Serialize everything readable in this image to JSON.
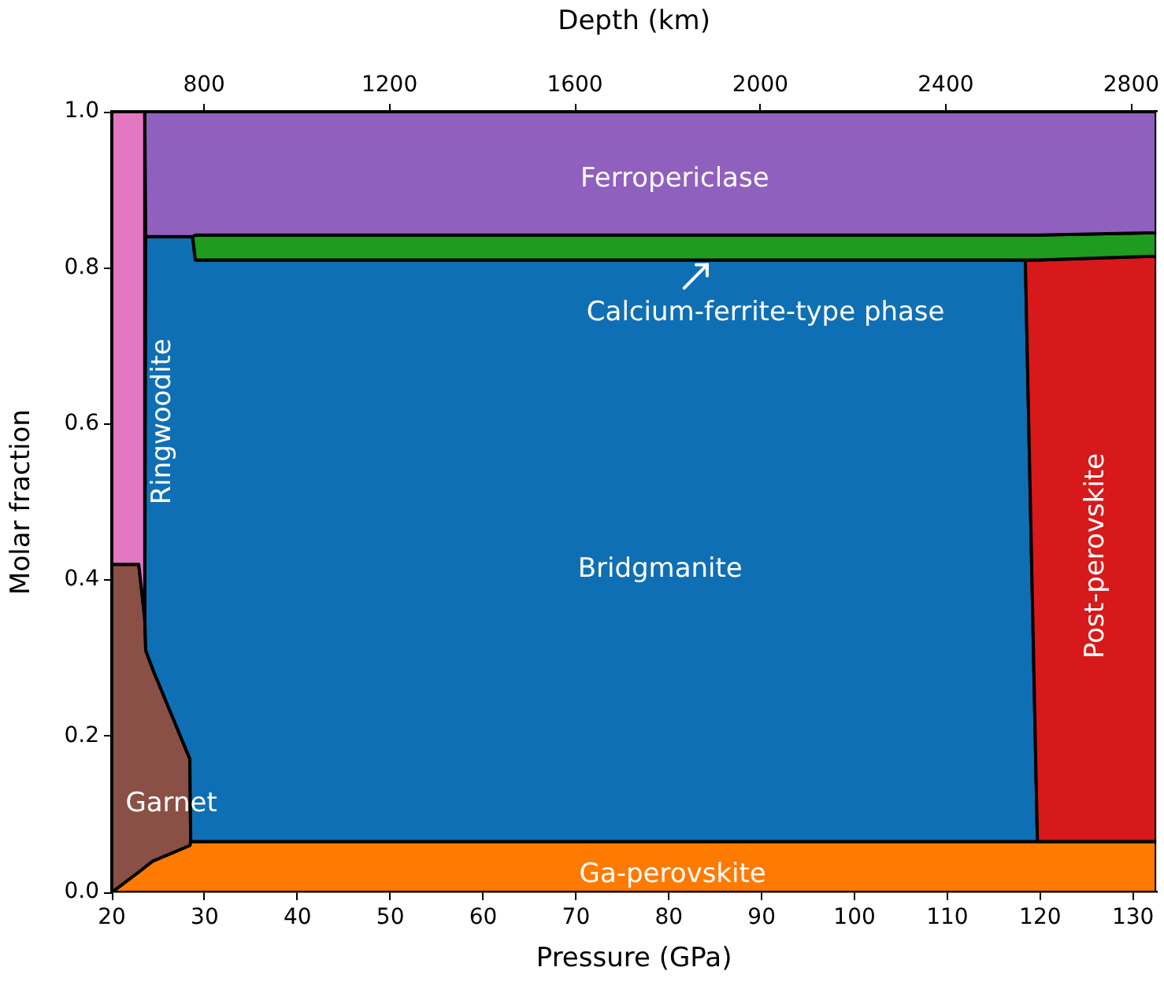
{
  "chart_data": {
    "type": "area",
    "stacked": true,
    "xlabel": "Pressure (GPa)",
    "ylabel": "Molar fraction",
    "x2label": "Depth (km)",
    "x": [
      20,
      22.9,
      23.55,
      23.65,
      24.4,
      28.4,
      28.5,
      28.7,
      29.0,
      118.4,
      119.7,
      132.5
    ],
    "series": [
      {
        "name": "Ga-perovskite",
        "color": "#ff7a00",
        "values": [
          0,
          0.026,
          0.032,
          0.033,
          0.04,
          0.06,
          0.065,
          0.065,
          0.065,
          0.065,
          0.065,
          0.065
        ]
      },
      {
        "name": "Garnet",
        "color": "#8a5045",
        "values": [
          0.42,
          0.394,
          0.318,
          0.277,
          0.246,
          0.111,
          0,
          null,
          null,
          null,
          null,
          null
        ]
      },
      {
        "name": "Bridgmanite",
        "color": "#0f6fb4",
        "values": [
          null,
          null,
          0,
          0.53,
          0.554,
          0.669,
          0.775,
          0.775,
          0.745,
          0.745,
          0,
          null
        ]
      },
      {
        "name": "Post-perovskite",
        "color": "#d7191b",
        "values": [
          null,
          null,
          null,
          null,
          null,
          null,
          null,
          null,
          null,
          0,
          0.745,
          0.75
        ]
      },
      {
        "name": "Ringwoodite",
        "color": "#e377c2",
        "values": [
          0.58,
          0.58,
          0.65,
          null,
          null,
          null,
          null,
          null,
          null,
          null,
          null,
          null
        ]
      },
      {
        "name": "Calcium-ferrite-type phase",
        "color": "#1f9b1f",
        "values": [
          null,
          null,
          null,
          null,
          null,
          null,
          null,
          0,
          0.032,
          0.032,
          0.032,
          0.03
        ]
      },
      {
        "name": "Ferropericlase",
        "color": "#9060bf",
        "values": [
          null,
          null,
          0,
          0.16,
          0.16,
          0.16,
          0.16,
          0.16,
          0.158,
          0.158,
          0.158,
          0.155
        ]
      }
    ],
    "xlim": [
      20,
      132.5
    ],
    "xticks": [
      20,
      30,
      40,
      50,
      60,
      70,
      80,
      90,
      100,
      110,
      120,
      130
    ],
    "ylim": [
      0,
      1
    ],
    "yticks": [
      {
        "value": 0,
        "label": "0.0"
      },
      {
        "value": 0.2,
        "label": "0.2"
      },
      {
        "value": 0.4,
        "label": "0.4"
      },
      {
        "value": 0.6,
        "label": "0.6"
      },
      {
        "value": 0.8,
        "label": "0.8"
      },
      {
        "value": 1,
        "label": "1.0"
      }
    ],
    "x2lim": [
      601,
      2854
    ],
    "x2ticks": [
      800,
      1200,
      1600,
      2000,
      2400,
      2800
    ],
    "grid": false,
    "legend": false
  }
}
